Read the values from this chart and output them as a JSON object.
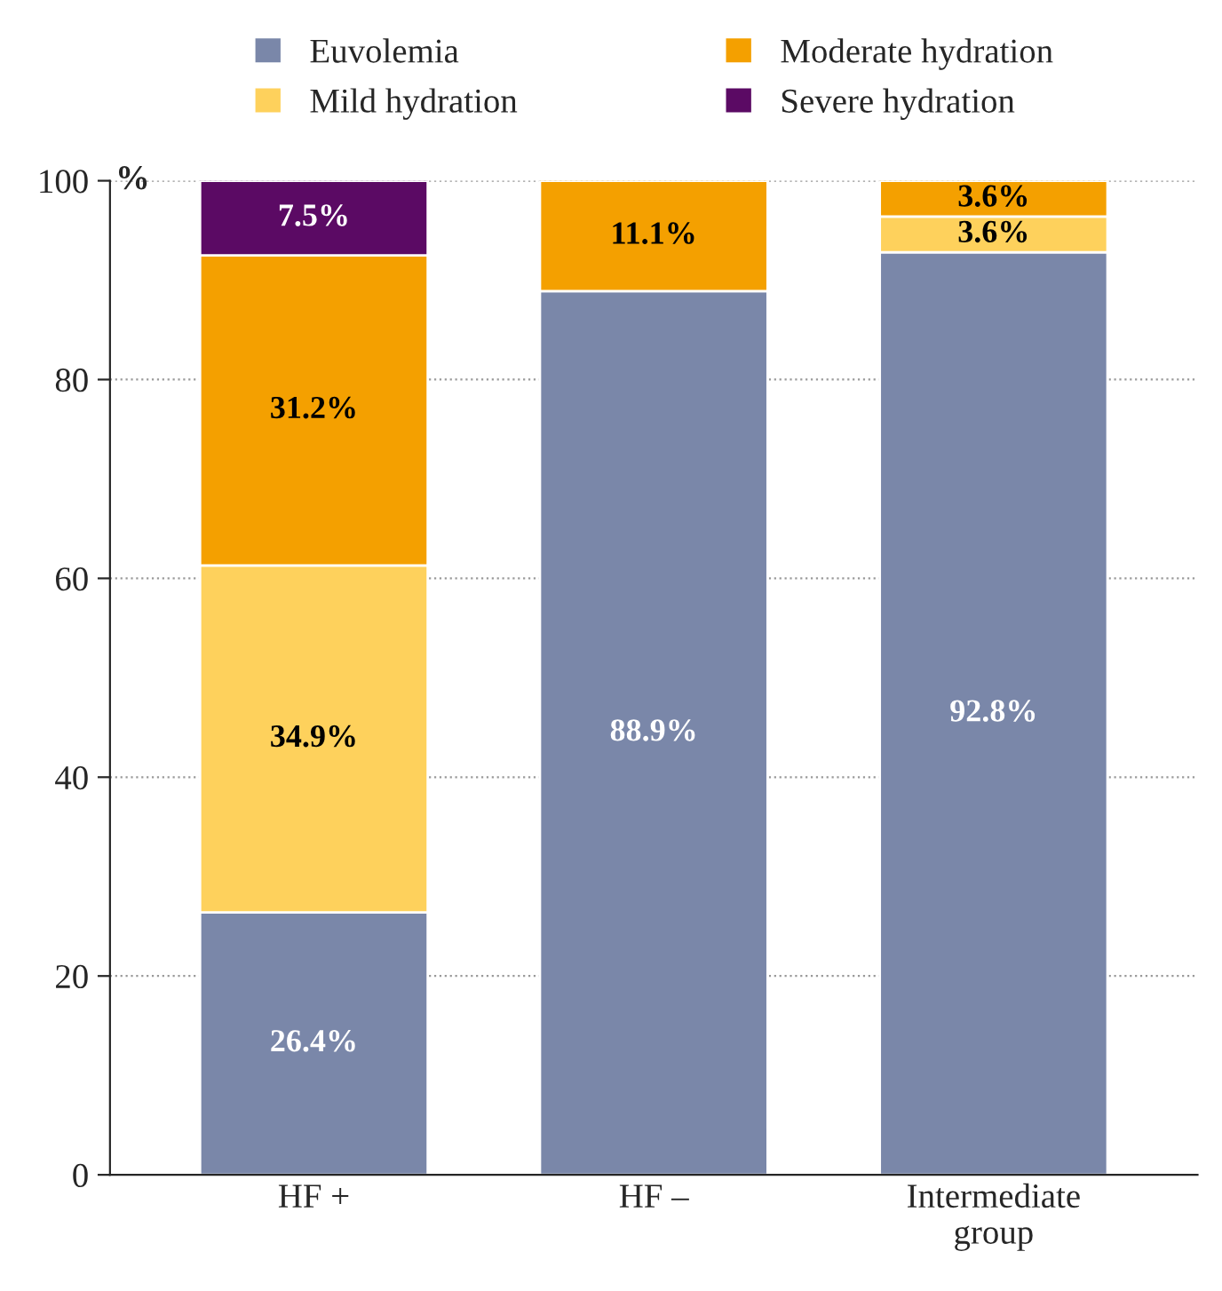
{
  "chart_data": {
    "type": "bar",
    "stacked": true,
    "ylabel": "%",
    "categories": [
      "HF +",
      "HF –",
      "Intermediate\ngroup"
    ],
    "series": [
      {
        "name": "Euvolemia",
        "color": "#7a87a9",
        "values": [
          26.4,
          88.9,
          92.8
        ],
        "value_labels": [
          "26.4%",
          "88.9%",
          "92.8%"
        ]
      },
      {
        "name": "Mild hydration",
        "color": "#fed15c",
        "values": [
          34.9,
          null,
          3.6
        ],
        "value_labels": [
          "34.9%",
          null,
          "3.6%"
        ]
      },
      {
        "name": "Moderate hydration",
        "color": "#f4a000",
        "values": [
          31.2,
          11.1,
          3.6
        ],
        "value_labels": [
          "31.2%",
          "11.1%",
          "3.6%"
        ]
      },
      {
        "name": "Severe hydration",
        "color": "#5b0a64",
        "values": [
          7.5,
          null,
          null
        ],
        "value_labels": [
          "7.5%",
          null,
          null
        ]
      }
    ],
    "ylim": [
      0,
      100
    ],
    "yticks": [
      0,
      20,
      40,
      60,
      80,
      100
    ],
    "grid": "y",
    "legend": "top"
  }
}
